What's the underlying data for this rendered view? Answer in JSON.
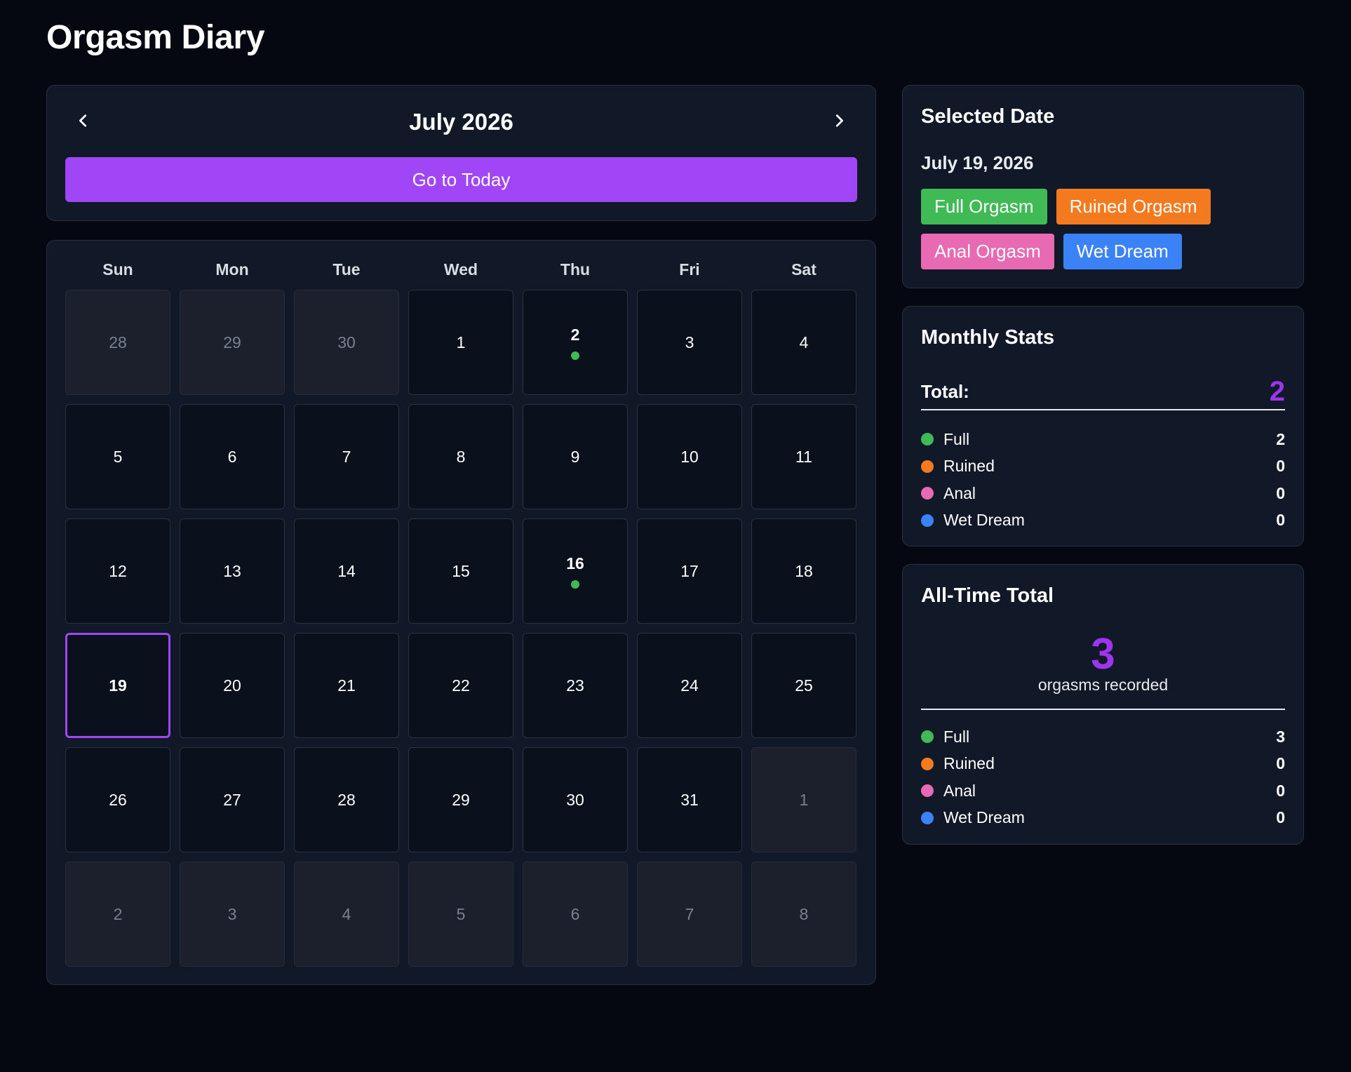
{
  "app": {
    "title": "Orgasm Diary"
  },
  "calendar": {
    "month_label": "July 2026",
    "today_button": "Go to Today",
    "weekdays": [
      "Sun",
      "Mon",
      "Tue",
      "Wed",
      "Thu",
      "Fri",
      "Sat"
    ],
    "days": [
      {
        "label": "28",
        "other": true
      },
      {
        "label": "29",
        "other": true
      },
      {
        "label": "30",
        "other": true
      },
      {
        "label": "1"
      },
      {
        "label": "2",
        "entry": true
      },
      {
        "label": "3"
      },
      {
        "label": "4"
      },
      {
        "label": "5"
      },
      {
        "label": "6"
      },
      {
        "label": "7"
      },
      {
        "label": "8"
      },
      {
        "label": "9"
      },
      {
        "label": "10"
      },
      {
        "label": "11"
      },
      {
        "label": "12"
      },
      {
        "label": "13"
      },
      {
        "label": "14"
      },
      {
        "label": "15"
      },
      {
        "label": "16",
        "entry": true
      },
      {
        "label": "17"
      },
      {
        "label": "18"
      },
      {
        "label": "19",
        "selected": true
      },
      {
        "label": "20"
      },
      {
        "label": "21"
      },
      {
        "label": "22"
      },
      {
        "label": "23"
      },
      {
        "label": "24"
      },
      {
        "label": "25"
      },
      {
        "label": "26"
      },
      {
        "label": "27"
      },
      {
        "label": "28"
      },
      {
        "label": "29"
      },
      {
        "label": "30"
      },
      {
        "label": "31"
      },
      {
        "label": "1",
        "other": true
      },
      {
        "label": "2",
        "other": true
      },
      {
        "label": "3",
        "other": true
      },
      {
        "label": "4",
        "other": true
      },
      {
        "label": "5",
        "other": true
      },
      {
        "label": "6",
        "other": true
      },
      {
        "label": "7",
        "other": true
      },
      {
        "label": "8",
        "other": true
      }
    ],
    "entry_dot_color": "#3fba55",
    "selected_color": "#a046f7"
  },
  "selected": {
    "heading": "Selected Date",
    "date": "July 19, 2026",
    "tags": [
      {
        "label": "Full Orgasm",
        "color": "#3fba55"
      },
      {
        "label": "Ruined Orgasm",
        "color": "#f47a1f"
      },
      {
        "label": "Anal Orgasm",
        "color": "#e86ab3"
      },
      {
        "label": "Wet Dream",
        "color": "#3b82f6"
      }
    ]
  },
  "monthly": {
    "heading": "Monthly Stats",
    "total_label": "Total:",
    "total_value": "2",
    "rows": [
      {
        "label": "Full",
        "value": "2",
        "color": "#3fba55"
      },
      {
        "label": "Ruined",
        "value": "0",
        "color": "#f47a1f"
      },
      {
        "label": "Anal",
        "value": "0",
        "color": "#e86ab3"
      },
      {
        "label": "Wet Dream",
        "value": "0",
        "color": "#3b82f6"
      }
    ]
  },
  "alltime": {
    "heading": "All-Time Total",
    "total_value": "3",
    "caption": "orgasms recorded",
    "rows": [
      {
        "label": "Full",
        "value": "3",
        "color": "#3fba55"
      },
      {
        "label": "Ruined",
        "value": "0",
        "color": "#f47a1f"
      },
      {
        "label": "Anal",
        "value": "0",
        "color": "#e86ab3"
      },
      {
        "label": "Wet Dream",
        "value": "0",
        "color": "#3b82f6"
      }
    ]
  },
  "icons": {
    "prev": "chevron-left-icon",
    "next": "chevron-right-icon"
  }
}
